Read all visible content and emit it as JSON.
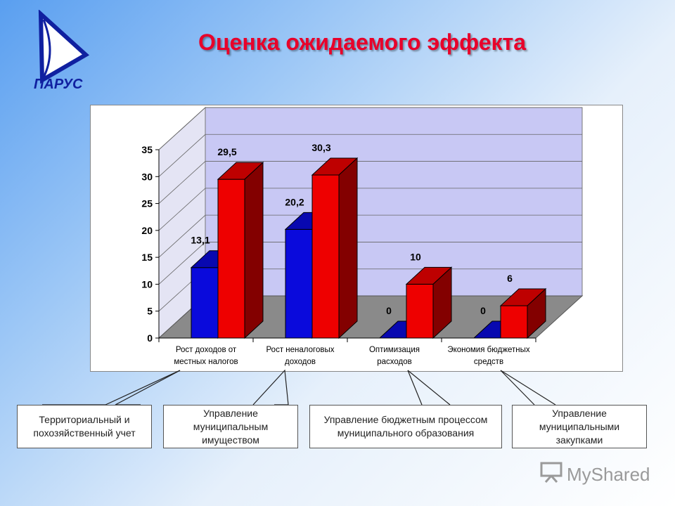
{
  "slide": {
    "title": "Оценка ожидаемого эффекта",
    "logo_text": "ПАРУС",
    "watermark": "MyShared"
  },
  "callouts": [
    "Территориальный и похозяйственный учет",
    "Управление муниципальным имуществом",
    "Управление бюджетным процессом муниципального образования",
    "Управление муниципальными закупками"
  ],
  "chart_data": {
    "type": "bar",
    "title": "",
    "xlabel": "",
    "ylabel": "",
    "ylim": [
      0,
      35
    ],
    "yticks": [
      0,
      5,
      10,
      15,
      20,
      25,
      30,
      35
    ],
    "grid": true,
    "categories": [
      "Рост доходов от местных налогов",
      "Рост неналоговых доходов",
      "Оптимизация расходов",
      "Экономия бюджетных средств"
    ],
    "series": [
      {
        "color": "#0a0adc",
        "values": [
          13.1,
          20.2,
          0,
          0
        ],
        "labels": [
          "13,1",
          "20,2",
          "0",
          "0"
        ]
      },
      {
        "color": "#ee0000",
        "values": [
          29.5,
          30.3,
          10,
          6
        ],
        "labels": [
          "29,5",
          "30,3",
          "10",
          "6"
        ]
      }
    ]
  }
}
